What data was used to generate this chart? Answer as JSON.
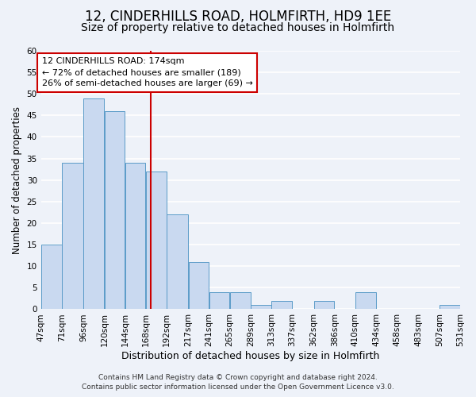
{
  "title": "12, CINDERHILLS ROAD, HOLMFIRTH, HD9 1EE",
  "subtitle": "Size of property relative to detached houses in Holmfirth",
  "xlabel": "Distribution of detached houses by size in Holmfirth",
  "ylabel": "Number of detached properties",
  "bin_edges": [
    47,
    71,
    96,
    120,
    144,
    168,
    192,
    217,
    241,
    265,
    289,
    313,
    337,
    362,
    386,
    410,
    434,
    458,
    483,
    507,
    531
  ],
  "bin_counts": [
    15,
    34,
    49,
    46,
    34,
    32,
    22,
    11,
    4,
    4,
    1,
    2,
    0,
    2,
    0,
    4,
    0,
    0,
    0,
    1
  ],
  "bin_labels": [
    "47sqm",
    "71sqm",
    "96sqm",
    "120sqm",
    "144sqm",
    "168sqm",
    "192sqm",
    "217sqm",
    "241sqm",
    "265sqm",
    "289sqm",
    "313sqm",
    "337sqm",
    "362sqm",
    "386sqm",
    "410sqm",
    "434sqm",
    "458sqm",
    "483sqm",
    "507sqm",
    "531sqm"
  ],
  "bar_facecolor": "#c9d9f0",
  "bar_edgecolor": "#5a9bc8",
  "property_value": 174,
  "vline_color": "#cc0000",
  "ylim": [
    0,
    60
  ],
  "yticks": [
    0,
    5,
    10,
    15,
    20,
    25,
    30,
    35,
    40,
    45,
    50,
    55,
    60
  ],
  "annotation_title": "12 CINDERHILLS ROAD: 174sqm",
  "annotation_line1": "← 72% of detached houses are smaller (189)",
  "annotation_line2": "26% of semi-detached houses are larger (69) →",
  "annotation_box_edgecolor": "#cc0000",
  "annotation_box_facecolor": "#ffffff",
  "footer_line1": "Contains HM Land Registry data © Crown copyright and database right 2024.",
  "footer_line2": "Contains public sector information licensed under the Open Government Licence v3.0.",
  "background_color": "#eef2f9",
  "grid_color": "#ffffff",
  "title_fontsize": 12,
  "subtitle_fontsize": 10,
  "xlabel_fontsize": 9,
  "ylabel_fontsize": 8.5,
  "tick_fontsize": 7.5,
  "annotation_fontsize": 8,
  "footer_fontsize": 6.5
}
